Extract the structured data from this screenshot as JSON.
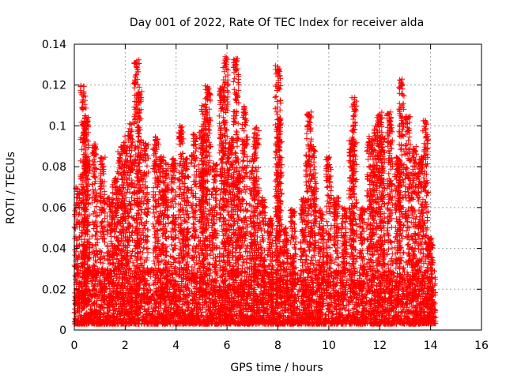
{
  "chart_data": {
    "type": "scatter",
    "title": "Day 001 of 2022, Rate Of TEC Index for receiver alda",
    "xlabel": "GPS time / hours",
    "ylabel": "ROTI / TECUs",
    "xlim": [
      0,
      16
    ],
    "ylim": [
      0,
      0.14
    ],
    "x_ticks": [
      "0",
      "2",
      "4",
      "6",
      "8",
      "10",
      "12",
      "14",
      "16"
    ],
    "y_ticks": [
      "0",
      "0.02",
      "0.04",
      "0.06",
      "0.08",
      "0.1",
      "0.12",
      "0.14"
    ],
    "grid": true,
    "marker": "+",
    "color": "#ff0000",
    "series": [
      {
        "name": "ROTI",
        "x_range": [
          0,
          14.2
        ],
        "baseline_band": [
          0.003,
          0.03
        ],
        "spikes": [
          {
            "x": 0.1,
            "peak": 0.07
          },
          {
            "x": 0.35,
            "peak": 0.12
          },
          {
            "x": 0.45,
            "peak": 0.105
          },
          {
            "x": 0.5,
            "peak": 0.085
          },
          {
            "x": 0.8,
            "peak": 0.092
          },
          {
            "x": 1.1,
            "peak": 0.085
          },
          {
            "x": 1.4,
            "peak": 0.065
          },
          {
            "x": 1.6,
            "peak": 0.075
          },
          {
            "x": 1.8,
            "peak": 0.09
          },
          {
            "x": 2.0,
            "peak": 0.095
          },
          {
            "x": 2.2,
            "peak": 0.102
          },
          {
            "x": 2.45,
            "peak": 0.133
          },
          {
            "x": 2.55,
            "peak": 0.118
          },
          {
            "x": 2.8,
            "peak": 0.092
          },
          {
            "x": 3.2,
            "peak": 0.095
          },
          {
            "x": 3.4,
            "peak": 0.085
          },
          {
            "x": 3.6,
            "peak": 0.082
          },
          {
            "x": 3.9,
            "peak": 0.085
          },
          {
            "x": 4.2,
            "peak": 0.1
          },
          {
            "x": 4.4,
            "peak": 0.085
          },
          {
            "x": 4.7,
            "peak": 0.098
          },
          {
            "x": 5.0,
            "peak": 0.098
          },
          {
            "x": 5.1,
            "peak": 0.11
          },
          {
            "x": 5.25,
            "peak": 0.121
          },
          {
            "x": 5.5,
            "peak": 0.082
          },
          {
            "x": 5.8,
            "peak": 0.12
          },
          {
            "x": 5.95,
            "peak": 0.134
          },
          {
            "x": 6.15,
            "peak": 0.095
          },
          {
            "x": 6.35,
            "peak": 0.133
          },
          {
            "x": 6.5,
            "peak": 0.08
          },
          {
            "x": 6.7,
            "peak": 0.11
          },
          {
            "x": 7.0,
            "peak": 0.085
          },
          {
            "x": 7.15,
            "peak": 0.1
          },
          {
            "x": 7.4,
            "peak": 0.065
          },
          {
            "x": 7.7,
            "peak": 0.055
          },
          {
            "x": 8.0,
            "peak": 0.13
          },
          {
            "x": 8.05,
            "peak": 0.105
          },
          {
            "x": 8.3,
            "peak": 0.05
          },
          {
            "x": 8.6,
            "peak": 0.06
          },
          {
            "x": 9.0,
            "peak": 0.065
          },
          {
            "x": 9.2,
            "peak": 0.107
          },
          {
            "x": 9.4,
            "peak": 0.09
          },
          {
            "x": 9.7,
            "peak": 0.06
          },
          {
            "x": 10.0,
            "peak": 0.085
          },
          {
            "x": 10.3,
            "peak": 0.065
          },
          {
            "x": 10.6,
            "peak": 0.06
          },
          {
            "x": 10.9,
            "peak": 0.093
          },
          {
            "x": 11.0,
            "peak": 0.114
          },
          {
            "x": 11.3,
            "peak": 0.06
          },
          {
            "x": 11.6,
            "peak": 0.095
          },
          {
            "x": 11.8,
            "peak": 0.1
          },
          {
            "x": 12.0,
            "peak": 0.107
          },
          {
            "x": 12.1,
            "peak": 0.095
          },
          {
            "x": 12.4,
            "peak": 0.107
          },
          {
            "x": 12.7,
            "peak": 0.085
          },
          {
            "x": 12.85,
            "peak": 0.123
          },
          {
            "x": 13.1,
            "peak": 0.105
          },
          {
            "x": 13.35,
            "peak": 0.09
          },
          {
            "x": 13.6,
            "peak": 0.085
          },
          {
            "x": 13.8,
            "peak": 0.103
          },
          {
            "x": 14.0,
            "peak": 0.045
          }
        ]
      }
    ]
  }
}
